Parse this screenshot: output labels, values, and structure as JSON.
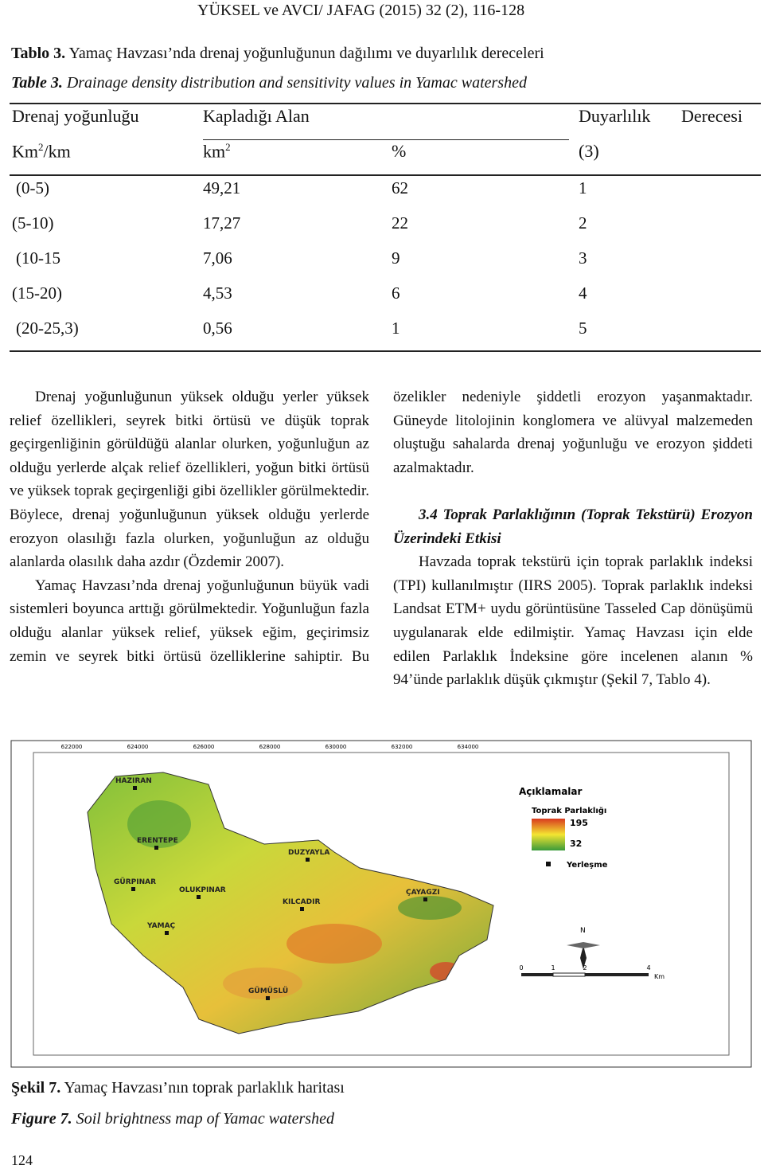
{
  "header": {
    "running_title": "YÜKSEL ve AVCI/ JAFAG (2015) 32 (2), 116-128"
  },
  "table_caption": {
    "tr_label": "Tablo 3.",
    "tr_text": "Yamaç Havzası’nda drenaj yoğunluğunun dağılımı ve duyarlılık dereceleri",
    "en_label": "Table 3.",
    "en_text": "Drainage density distribution and sensitivity values in Yamac watershed"
  },
  "table": {
    "header1": [
      "Drenaj yoğunluğu",
      "Kapladığı Alan",
      "Duyarlılık",
      "Derecesi"
    ],
    "header2": {
      "unit1_base": "Km",
      "unit1_sup": "2",
      "unit1_rest": "/km",
      "unit2_base": "km",
      "unit2_sup": "2",
      "percent": "%",
      "rank": "(3)"
    },
    "rows": [
      [
        "(0-5)",
        "49,21",
        "62",
        "1"
      ],
      [
        "(5-10)",
        "17,27",
        "22",
        "2"
      ],
      [
        "(10-15",
        "7,06",
        "9",
        "3"
      ],
      [
        "(15-20)",
        "4,53",
        "6",
        "4"
      ],
      [
        "(20-25,3)",
        "0,56",
        "1",
        "5"
      ]
    ]
  },
  "body": {
    "left_p1": "Drenaj yoğunluğunun yüksek olduğu yerler yüksek relief özellikleri, seyrek bitki örtüsü ve düşük toprak geçirgenliğinin görüldüğü alanlar olurken, yoğunluğun az olduğu yerlerde alçak relief özellikleri, yoğun bitki örtüsü ve yüksek toprak geçirgenliği gibi özellikler görülmektedir. Böylece, drenaj yoğunluğunun yüksek olduğu yerlerde erozyon olasılığı fazla olurken, yoğunluğun az olduğu alanlarda olasılık daha azdır (Özdemir 2007).",
    "left_p2": "Yamaç Havzası’nda drenaj yoğunluğunun büyük vadi sistemleri boyunca arttığı görülmektedir. Yoğunluğun fazla olduğu alanlar yüksek relief, yüksek eğim, geçirimsiz zemin ve seyrek bitki örtüsü özelliklerine sahiptir. Bu",
    "right_p1": "özelikler nedeniyle şiddetli erozyon yaşanmaktadır. Güneyde litolojinin konglomera ve alüvyal malzemeden oluştuğu sahalarda drenaj yoğunluğu ve erozyon şiddeti azalmaktadır.",
    "heading": "3.4 Toprak Parlaklığının (Toprak Tekstürü) Erozyon Üzerindeki Etkisi",
    "right_p2": "Havzada toprak tekstürü için toprak parlaklık indeksi (TPI) kullanılmıştır (IIRS 2005). Toprak parlaklık indeksi Landsat ETM+ uydu görüntüsüne Tasseled Cap dönüşümü uygulanarak elde edilmiştir. Yamaç Havzası için elde edilen Parlaklık İndeksine göre incelenen alanın % 94’ünde parlaklık düşük çıkmıştır (Şekil 7, Tablo 4)."
  },
  "map": {
    "x_coords": [
      "622000",
      "624000",
      "626000",
      "628000",
      "630000",
      "632000",
      "634000"
    ],
    "places": [
      "HAZIRAN",
      "ERENTEPE",
      "DUZYAYLA",
      "GÜRPINAR",
      "OLUKPINAR",
      "KILCADIR",
      "ÇAYAGZI",
      "YAMAÇ",
      "GÜMÜSLÜ"
    ],
    "legend_title": "Açıklamalar",
    "legend_sub": "Toprak Parlaklığı",
    "legend_high": "195",
    "legend_low": "32",
    "legend_settlement": "Yerleşme",
    "north": "N",
    "scale_labels": [
      "0",
      "1",
      "2",
      "4"
    ],
    "scale_unit": "Km"
  },
  "figure_caption": {
    "tr_label": "Şekil 7.",
    "tr_text": "Yamaç Havzası’nın toprak parlaklık haritası",
    "en_label": "Figure 7.",
    "en_text": "Soil brightness map of Yamac watershed"
  },
  "footer": {
    "page_number": "124"
  }
}
